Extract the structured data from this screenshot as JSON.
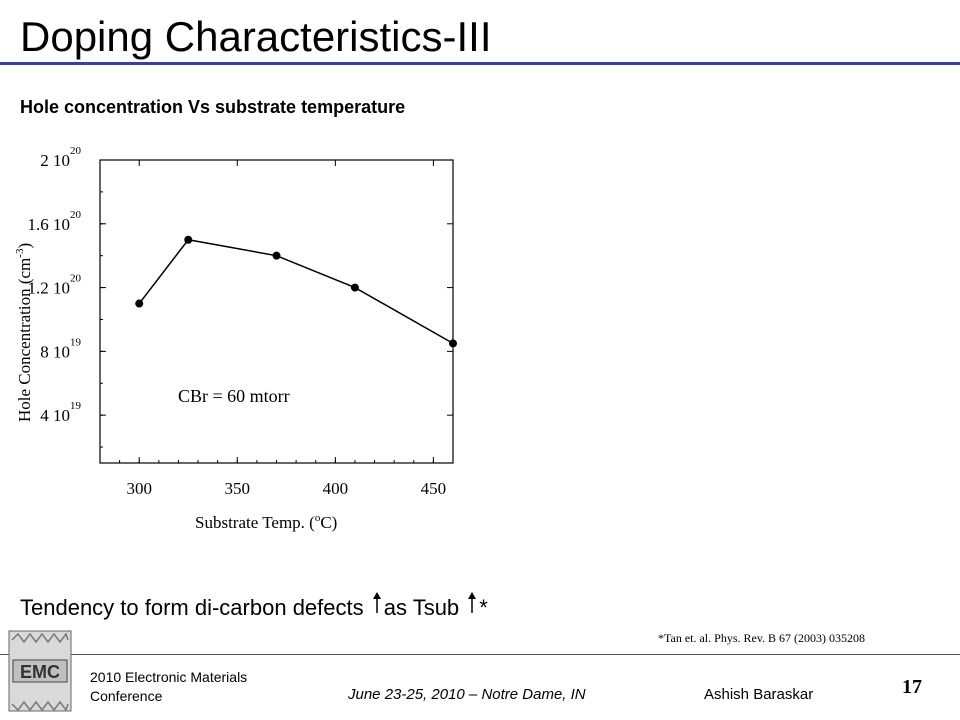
{
  "slide": {
    "title": "Doping Characteristics-III",
    "subtitle": "Hole concentration Vs substrate temperature",
    "tendency_prefix": "Tendency to form di-carbon defects",
    "tendency_middle": "as Tsub",
    "tendency_suffix": "*",
    "reference": "*Tan et. al. Phys. Rev. B 67 (2003) 035208",
    "footer": {
      "conference_line1": "2010 Electronic Materials",
      "conference_line2": "Conference",
      "dates": "June 23-25, 2010 – Notre Dame, IN",
      "author": "Ashish Baraskar",
      "page_number": "17",
      "logo_text": "EMC"
    }
  },
  "chart_data": {
    "type": "line",
    "xlabel": "Substrate Temp. (°C)",
    "ylabel": "Hole Concentration (cm-3)",
    "xlim": [
      280,
      460
    ],
    "ylim": [
      1e+19,
      2e+20
    ],
    "x_ticks": [
      "300",
      "350",
      "400",
      "450"
    ],
    "y_ticks": [
      {
        "mantissa": "2 10",
        "exp": "20",
        "value": 2e+20
      },
      {
        "mantissa": "1.6 10",
        "exp": "20",
        "value": 1.6e+20
      },
      {
        "mantissa": "1.2 10",
        "exp": "20",
        "value": 1.2e+20
      },
      {
        "mantissa": "8 10",
        "exp": "19",
        "value": 8e+19
      },
      {
        "mantissa": "4 10",
        "exp": "19",
        "value": 4e+19
      }
    ],
    "annotation": "CBr = 60 mtorr",
    "grid": false,
    "series": [
      {
        "x": [
          300,
          325,
          370,
          410,
          460
        ],
        "y": [
          1.1e+20,
          1.5e+20,
          1.4e+20,
          1.2e+20,
          8.5e+19
        ]
      }
    ]
  }
}
